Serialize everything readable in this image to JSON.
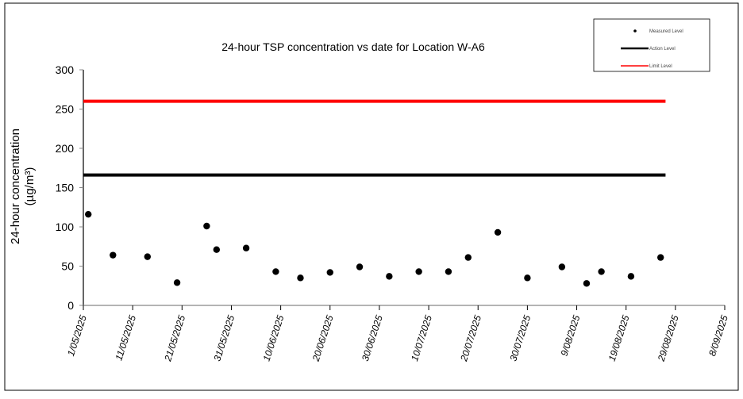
{
  "chart_data": {
    "type": "scatter",
    "title": "24-hour TSP concentration vs date for Location W-A6",
    "ylabel": "24-hour concentration",
    "ylabel_unit": "(µg/m³)",
    "xlabel": "",
    "ylim": [
      0,
      300
    ],
    "yticks": [
      0,
      50,
      100,
      150,
      200,
      250,
      300
    ],
    "xlim": [
      "1/05/2025",
      "8/09/2025"
    ],
    "xticks": [
      "1/05/2025",
      "11/05/2025",
      "21/05/2025",
      "31/05/2025",
      "10/06/2025",
      "20/06/2025",
      "30/06/2025",
      "10/07/2025",
      "20/07/2025",
      "30/07/2025",
      "9/08/2025",
      "19/08/2025",
      "29/08/2025",
      "8/09/2025"
    ],
    "grid": false,
    "legend_placement": "top-right",
    "series": [
      {
        "name": "Measured Level",
        "kind": "points",
        "color": "#000000",
        "x": [
          "2/05/2025",
          "7/05/2025",
          "14/05/2025",
          "20/05/2025",
          "26/05/2025",
          "28/05/2025",
          "3/06/2025",
          "9/06/2025",
          "14/06/2025",
          "20/06/2025",
          "26/06/2025",
          "2/07/2025",
          "8/07/2025",
          "14/07/2025",
          "18/07/2025",
          "24/07/2025",
          "30/07/2025",
          "6/08/2025",
          "11/08/2025",
          "14/08/2025",
          "20/08/2025",
          "26/08/2025"
        ],
        "y": [
          116,
          64,
          62,
          29,
          101,
          71,
          73,
          43,
          35,
          42,
          49,
          37,
          43,
          43,
          61,
          93,
          35,
          49,
          28,
          43,
          37,
          61
        ]
      },
      {
        "name": "Action Level",
        "kind": "line",
        "color": "#000000",
        "value": 166,
        "x": [
          "1/05/2025",
          "27/08/2025"
        ]
      },
      {
        "name": "Limit Level",
        "kind": "line",
        "color": "#ff0000",
        "value": 260,
        "x": [
          "1/05/2025",
          "27/08/2025"
        ]
      }
    ]
  }
}
